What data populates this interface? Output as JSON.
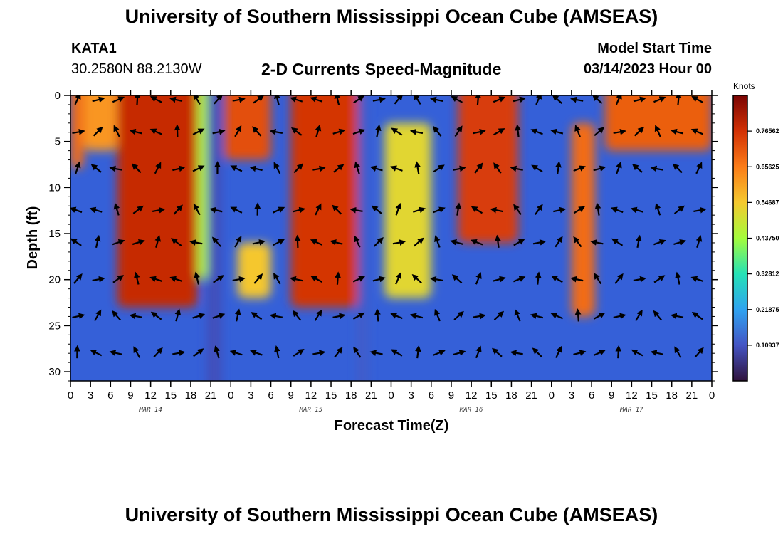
{
  "header": {
    "title": "University of Southern Mississippi Ocean Cube (AMSEAS)",
    "station": "KATA1",
    "coords": "30.2580N  88.2130W",
    "subtitle": "2-D Currents Speed-Magnitude",
    "model_start_label": "Model Start Time",
    "model_start_value": "03/14/2023 Hour 00"
  },
  "footer": {
    "title": "University of Southern Mississippi Ocean Cube (AMSEAS)"
  },
  "chart_data": {
    "type": "heatmap",
    "title": "2-D Currents Speed-Magnitude",
    "xlabel": "Forecast Time(Z)",
    "ylabel": "Depth (ft)",
    "x_range_hours": [
      0,
      96
    ],
    "y_range_ft": [
      0,
      31
    ],
    "x_tick_labels": [
      "0",
      "3",
      "6",
      "9",
      "12",
      "15",
      "18",
      "21",
      "0",
      "3",
      "6",
      "9",
      "12",
      "15",
      "18",
      "21",
      "0",
      "3",
      "6",
      "9",
      "12",
      "15",
      "18",
      "21",
      "0",
      "3",
      "6",
      "9",
      "12",
      "15",
      "18",
      "21",
      "0"
    ],
    "y_ticks": [
      0,
      5,
      10,
      15,
      20,
      25,
      30
    ],
    "day_labels": [
      {
        "label": "MAR 14",
        "hour": 12
      },
      {
        "label": "MAR 15",
        "hour": 36
      },
      {
        "label": "MAR 16",
        "hour": 60
      },
      {
        "label": "MAR 17",
        "hour": 84
      }
    ],
    "colorbar": {
      "unit": "Knots",
      "min": 0,
      "max": 0.875,
      "tick_labels": [
        "0.76562",
        "0.65625",
        "0.54687",
        "0.43750",
        "0.32812",
        "0.21875",
        "0.10937"
      ],
      "tick_values": [
        0.765625,
        0.65625,
        0.546875,
        0.4375,
        0.328125,
        0.21875,
        0.109375
      ]
    },
    "speed_bands": [
      {
        "hours": [
          0,
          2
        ],
        "top_ft": 0,
        "bottom_ft": 8,
        "speed": 0.68
      },
      {
        "hours": [
          2,
          7
        ],
        "top_ft": 0,
        "bottom_ft": 6,
        "speed": 0.62
      },
      {
        "hours": [
          7,
          19
        ],
        "top_ft": 0,
        "bottom_ft": 23,
        "speed": 0.78
      },
      {
        "hours": [
          19,
          20.5
        ],
        "top_ft": 0,
        "bottom_ft": 20,
        "speed": 0.45
      },
      {
        "hours": [
          20.5,
          22.5
        ],
        "top_ft": 0,
        "bottom_ft": 31,
        "speed": 0.1
      },
      {
        "hours": [
          23,
          30
        ],
        "top_ft": 0,
        "bottom_ft": 7,
        "speed": 0.72
      },
      {
        "hours": [
          25,
          30
        ],
        "top_ft": 16,
        "bottom_ft": 22,
        "speed": 0.55
      },
      {
        "hours": [
          33,
          43
        ],
        "top_ft": 0,
        "bottom_ft": 23,
        "speed": 0.76
      },
      {
        "hours": [
          43,
          44.5
        ],
        "top_ft": 0,
        "bottom_ft": 31,
        "speed": 0.12
      },
      {
        "hours": [
          47,
          54
        ],
        "top_ft": 3,
        "bottom_ft": 22,
        "speed": 0.52
      },
      {
        "hours": [
          58,
          67
        ],
        "top_ft": 0,
        "bottom_ft": 16,
        "speed": 0.75
      },
      {
        "hours": [
          75,
          78.5
        ],
        "top_ft": 3,
        "bottom_ft": 24,
        "speed": 0.68
      },
      {
        "hours": [
          80,
          96
        ],
        "top_ft": 0,
        "bottom_ft": 6,
        "speed": 0.7
      }
    ]
  }
}
